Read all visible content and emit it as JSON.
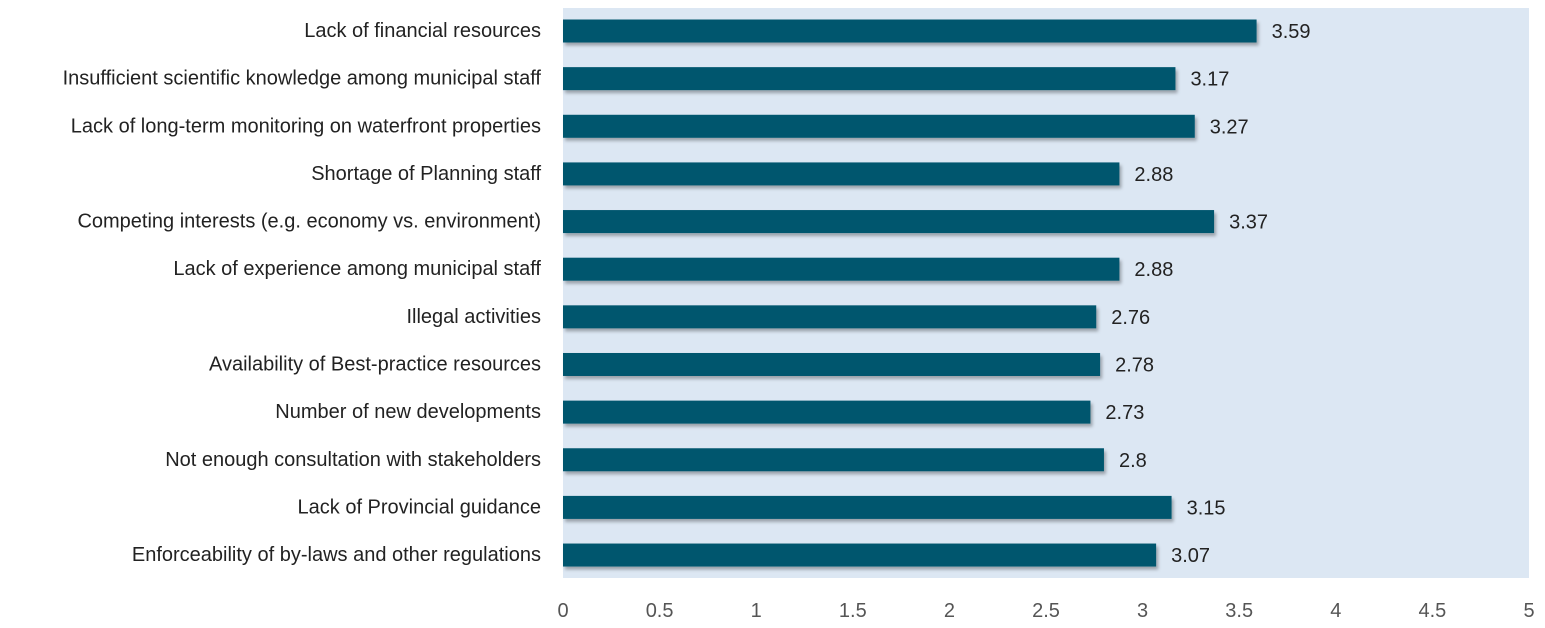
{
  "chart_data": {
    "type": "bar",
    "orientation": "horizontal",
    "title": "",
    "xlabel": "",
    "ylabel": "",
    "xlim": [
      0,
      5
    ],
    "x_ticks": [
      "0",
      "0.5",
      "1",
      "1.5",
      "2",
      "2.5",
      "3",
      "3.5",
      "4",
      "4.5",
      "5"
    ],
    "grid": false,
    "legend": "none",
    "categories": [
      "Lack of financial resources",
      "Insufficient scientific knowledge among municipal staff",
      "Lack of long-term monitoring on waterfront properties",
      "Shortage of Planning staff",
      "Competing interests (e.g. economy vs. environment)",
      "Lack of experience among municipal staff",
      "Illegal activities",
      "Availability of Best-practice resources",
      "Number of new developments",
      "Not enough consultation with stakeholders",
      "Lack of Provincial guidance",
      "Enforceability of by-laws and other regulations"
    ],
    "values": [
      3.59,
      3.17,
      3.27,
      2.88,
      3.37,
      2.88,
      2.76,
      2.78,
      2.73,
      2.8,
      3.15,
      3.07
    ],
    "value_labels": [
      "3.59",
      "3.17",
      "3.27",
      "2.88",
      "3.37",
      "2.88",
      "2.76",
      "2.78",
      "2.73",
      "2.8",
      "3.15",
      "3.07"
    ],
    "colors": {
      "bar": "#04566e",
      "plot_background": "#dce7f3",
      "category_text": "#222222",
      "tick_text": "#555555",
      "value_text": "#222222"
    }
  }
}
